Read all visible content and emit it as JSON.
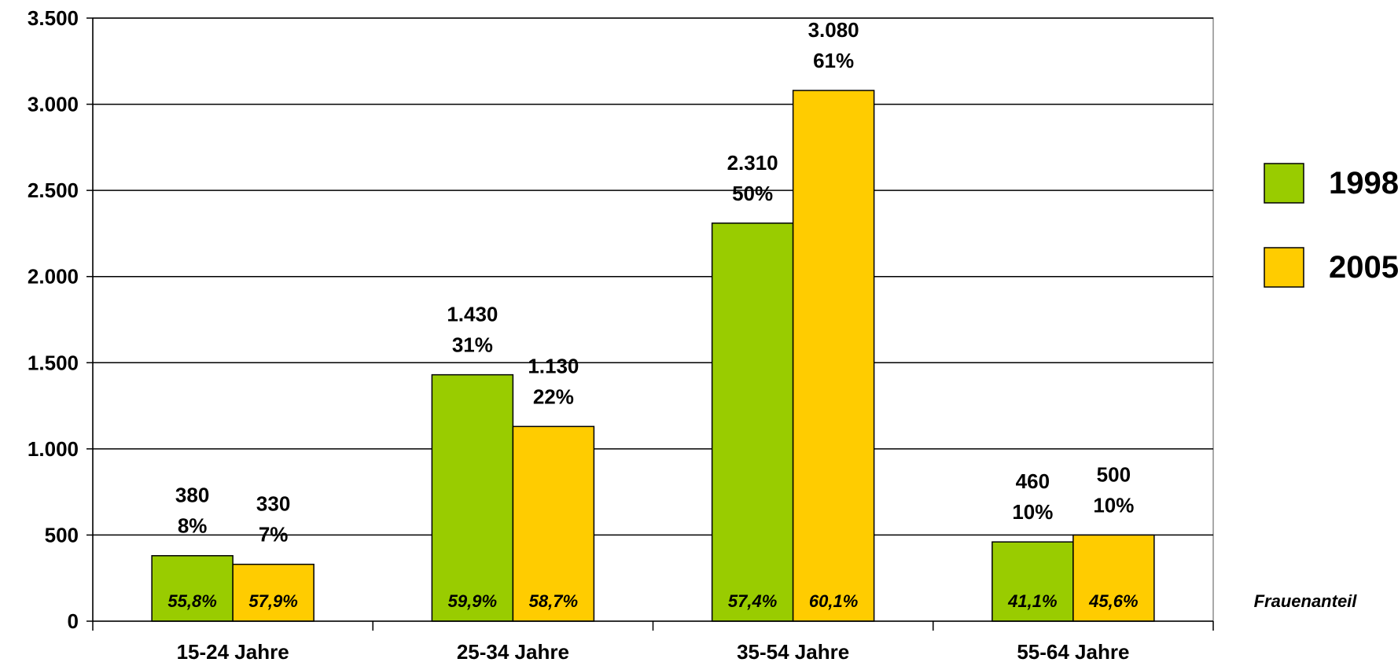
{
  "chart_data": {
    "type": "bar",
    "categories": [
      "15-24 Jahre",
      "25-34 Jahre",
      "35-54 Jahre",
      "55-64 Jahre"
    ],
    "series": [
      {
        "name": "1998",
        "color": "#99CC00",
        "values": [
          380,
          1430,
          2310,
          460
        ],
        "value_labels": [
          "380",
          "1.430",
          "2.310",
          "460"
        ],
        "share_labels": [
          "8%",
          "31%",
          "50%",
          "10%"
        ],
        "frauenanteil": [
          "55,8%",
          "59,9%",
          "57,4%",
          "41,1%"
        ]
      },
      {
        "name": "2005",
        "color": "#FFCC00",
        "values": [
          330,
          1130,
          3080,
          500
        ],
        "value_labels": [
          "330",
          "1.130",
          "3.080",
          "500"
        ],
        "share_labels": [
          "7%",
          "22%",
          "61%",
          "10%"
        ],
        "frauenanteil": [
          "57,9%",
          "58,7%",
          "60,1%",
          "45,6%"
        ]
      }
    ],
    "ylim": [
      0,
      3500
    ],
    "ytick_values": [
      0,
      500,
      1000,
      1500,
      2000,
      2500,
      3000,
      3500
    ],
    "ytick_labels": [
      "0",
      "500",
      "1.000",
      "1.500",
      "2.000",
      "2.500",
      "3.000",
      "3.500"
    ],
    "grid": true,
    "legend_position": "right",
    "annotation": "Frauenanteil"
  }
}
